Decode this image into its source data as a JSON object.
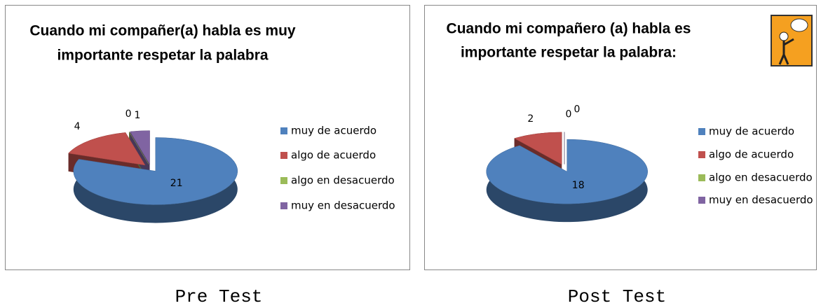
{
  "chart_data": [
    {
      "type": "pie",
      "title": [
        "Cuando mi compañer(a) habla es muy",
        "importante respetar la palabra"
      ],
      "categories": [
        "muy de acuerdo",
        "algo de acuerdo",
        "algo en desacuerdo",
        "muy en desacuerdo"
      ],
      "values": [
        21,
        4,
        0,
        1
      ],
      "colors": [
        "#4f81bd",
        "#c0504d",
        "#9bbb59",
        "#8064a2"
      ],
      "legend": "right",
      "caption": "Pre Test"
    },
    {
      "type": "pie",
      "title": [
        "Cuando mi compañero (a) habla es",
        "importante respetar la palabra:"
      ],
      "categories": [
        "muy de acuerdo",
        "algo de acuerdo",
        "algo en desacuerdo",
        "muy en desacuerdo"
      ],
      "values": [
        18,
        2,
        0,
        0
      ],
      "colors": [
        "#4f81bd",
        "#c0504d",
        "#9bbb59",
        "#8064a2"
      ],
      "legend": "right",
      "caption": "Post Test"
    }
  ]
}
